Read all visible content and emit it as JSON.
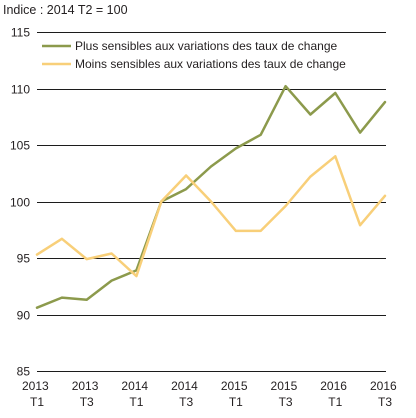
{
  "chart_data": {
    "type": "line",
    "ylabel": "Indice : 2014 T2 = 100",
    "categories": [
      "2013 T1",
      "2013 T2",
      "2013 T3",
      "2013 T4",
      "2014 T1",
      "2014 T2",
      "2014 T3",
      "2014 T4",
      "2015 T1",
      "2015 T2",
      "2015 T3",
      "2015 T4",
      "2016 T1",
      "2016 T2",
      "2016 T3"
    ],
    "x_ticks": [
      "2013 T1",
      "2013 T3",
      "2014 T1",
      "2014 T3",
      "2015 T1",
      "2015 T3",
      "2016 T1",
      "2016 T3"
    ],
    "ylim": [
      85,
      115
    ],
    "y_ticks": [
      85,
      90,
      95,
      100,
      105,
      110,
      115
    ],
    "grid": true,
    "legend": "top-left",
    "series": [
      {
        "name": "Plus sensibles aux variations des taux de change",
        "color": "#8c9a4c",
        "values": [
          90.6,
          91.5,
          91.3,
          93.0,
          93.9,
          100.0,
          101.1,
          103.1,
          104.7,
          105.9,
          110.2,
          107.7,
          109.6,
          106.1,
          108.8
        ]
      },
      {
        "name": "Moins sensibles aux variations des taux de change",
        "color": "#f8cf79",
        "values": [
          95.3,
          96.7,
          94.9,
          95.4,
          93.4,
          100.0,
          102.3,
          100.0,
          97.4,
          97.4,
          99.6,
          102.2,
          104.0,
          97.9,
          100.5
        ]
      }
    ]
  }
}
